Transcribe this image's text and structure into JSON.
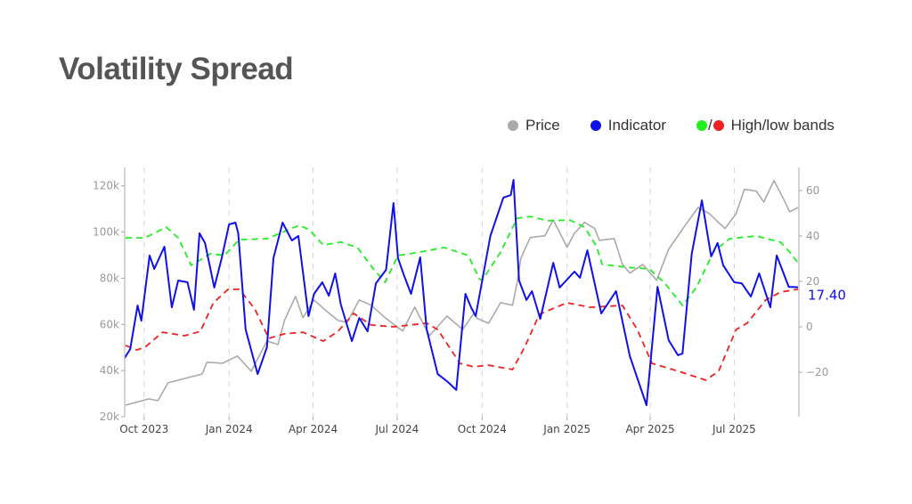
{
  "title": "Volatility Spread",
  "legend": {
    "price": {
      "label": "Price",
      "color": "#aaaaaa"
    },
    "indicator": {
      "label": "Indicator",
      "color": "#1010e8"
    },
    "bands": {
      "label": "High/low bands",
      "separator": "/",
      "high_color": "#22ee22",
      "low_color": "#ee2222"
    }
  },
  "chart_data": {
    "type": "line",
    "title": "Volatility Spread",
    "x_range": [
      "2023-09-10",
      "2025-09-09"
    ],
    "x_ticks": [
      {
        "date": "2023-10-01",
        "label": "Oct 2023"
      },
      {
        "date": "2024-01-01",
        "label": "Jan 2024"
      },
      {
        "date": "2024-04-01",
        "label": "Apr 2024"
      },
      {
        "date": "2024-07-01",
        "label": "Jul 2024"
      },
      {
        "date": "2024-10-01",
        "label": "Oct 2024"
      },
      {
        "date": "2025-01-01",
        "label": "Jan 2025"
      },
      {
        "date": "2025-04-01",
        "label": "Apr 2025"
      },
      {
        "date": "2025-07-01",
        "label": "Jul 2025"
      }
    ],
    "grid": "vertical dashed at x ticks",
    "y_left": {
      "range": [
        20000,
        128000
      ],
      "ticks": [
        {
          "value": 20000,
          "label": "20k"
        },
        {
          "value": 40000,
          "label": "40k"
        },
        {
          "value": 60000,
          "label": "60k"
        },
        {
          "value": 80000,
          "label": "80k"
        },
        {
          "value": 100000,
          "label": "100k"
        },
        {
          "value": 120000,
          "label": "120k"
        }
      ]
    },
    "y_right": {
      "range": [
        -39.6,
        70.2
      ],
      "ticks": [
        {
          "value": -20,
          "label": "−20"
        },
        {
          "value": 0,
          "label": "0"
        },
        {
          "value": 20,
          "label": "20"
        },
        {
          "value": 40,
          "label": "40"
        },
        {
          "value": 60,
          "label": "60"
        }
      ]
    },
    "last_value_label": "17.40",
    "series": [
      {
        "name": "Price",
        "axis": "left",
        "color": "#aaaaaa",
        "style": "solid",
        "points": [
          [
            "2023-09-11",
            25000
          ],
          [
            "2023-10-06",
            27700
          ],
          [
            "2023-10-16",
            27000
          ],
          [
            "2023-10-27",
            34700
          ],
          [
            "2023-11-14",
            36600
          ],
          [
            "2023-12-03",
            38500
          ],
          [
            "2023-12-08",
            43600
          ],
          [
            "2023-12-25",
            43200
          ],
          [
            "2024-01-10",
            46300
          ],
          [
            "2024-01-25",
            39700
          ],
          [
            "2024-02-11",
            52800
          ],
          [
            "2024-02-23",
            51300
          ],
          [
            "2024-03-01",
            61700
          ],
          [
            "2024-03-13",
            72100
          ],
          [
            "2024-03-21",
            62900
          ],
          [
            "2024-04-02",
            70600
          ],
          [
            "2024-04-16",
            65600
          ],
          [
            "2024-04-28",
            61700
          ],
          [
            "2024-05-08",
            60900
          ],
          [
            "2024-05-21",
            70600
          ],
          [
            "2024-06-03",
            68300
          ],
          [
            "2024-06-18",
            62900
          ],
          [
            "2024-07-07",
            57100
          ],
          [
            "2024-07-20",
            67500
          ],
          [
            "2024-08-05",
            55100
          ],
          [
            "2024-08-24",
            63600
          ],
          [
            "2024-09-10",
            57800
          ],
          [
            "2024-09-22",
            64800
          ],
          [
            "2024-09-26",
            62500
          ],
          [
            "2024-10-08",
            60500
          ],
          [
            "2024-10-21",
            69400
          ],
          [
            "2024-11-03",
            68300
          ],
          [
            "2024-11-08",
            78300
          ],
          [
            "2024-11-12",
            88700
          ],
          [
            "2024-11-22",
            97600
          ],
          [
            "2024-12-08",
            98400
          ],
          [
            "2024-12-17",
            105300
          ],
          [
            "2025-01-01",
            93400
          ],
          [
            "2025-01-09",
            99500
          ],
          [
            "2025-01-20",
            104200
          ],
          [
            "2025-01-31",
            101500
          ],
          [
            "2025-02-05",
            96400
          ],
          [
            "2025-02-21",
            97200
          ],
          [
            "2025-03-02",
            86000
          ],
          [
            "2025-03-10",
            82200
          ],
          [
            "2025-03-24",
            86000
          ],
          [
            "2025-04-08",
            79100
          ],
          [
            "2025-04-21",
            92600
          ],
          [
            "2025-05-09",
            103000
          ],
          [
            "2025-05-23",
            110700
          ],
          [
            "2025-06-04",
            108000
          ],
          [
            "2025-06-21",
            101500
          ],
          [
            "2025-07-03",
            108000
          ],
          [
            "2025-07-12",
            118500
          ],
          [
            "2025-07-25",
            117700
          ],
          [
            "2025-08-02",
            113000
          ],
          [
            "2025-08-13",
            122300
          ],
          [
            "2025-08-23",
            114600
          ],
          [
            "2025-08-30",
            108800
          ],
          [
            "2025-09-08",
            110700
          ]
        ]
      },
      {
        "name": "High band",
        "axis": "right",
        "color": "#22ee22",
        "style": "dashed",
        "points": [
          [
            "2023-09-11",
            39.2
          ],
          [
            "2023-10-02",
            39.2
          ],
          [
            "2023-10-25",
            43.9
          ],
          [
            "2023-11-07",
            39.2
          ],
          [
            "2023-11-21",
            27.1
          ],
          [
            "2023-12-12",
            32.2
          ],
          [
            "2023-12-27",
            31.4
          ],
          [
            "2024-01-12",
            38.4
          ],
          [
            "2024-02-11",
            38.8
          ],
          [
            "2024-03-01",
            42
          ],
          [
            "2024-03-17",
            44.7
          ],
          [
            "2024-03-28",
            42.7
          ],
          [
            "2024-04-12",
            36
          ],
          [
            "2024-05-01",
            37.3
          ],
          [
            "2024-05-19",
            34.9
          ],
          [
            "2024-06-06",
            25.1
          ],
          [
            "2024-06-18",
            19.6
          ],
          [
            "2024-07-02",
            31.4
          ],
          [
            "2024-07-20",
            32.5
          ],
          [
            "2024-08-21",
            34.9
          ],
          [
            "2024-09-16",
            31.4
          ],
          [
            "2024-09-28",
            21.2
          ],
          [
            "2024-10-01",
            20.4
          ],
          [
            "2024-10-21",
            32.9
          ],
          [
            "2024-11-08",
            47.8
          ],
          [
            "2024-11-22",
            48.6
          ],
          [
            "2024-12-11",
            46.7
          ],
          [
            "2025-01-04",
            47
          ],
          [
            "2025-01-20",
            43.9
          ],
          [
            "2025-02-02",
            35.3
          ],
          [
            "2025-02-08",
            27.5
          ],
          [
            "2025-03-05",
            26.3
          ],
          [
            "2025-03-31",
            25.5
          ],
          [
            "2025-04-16",
            19.6
          ],
          [
            "2025-05-06",
            9.4
          ],
          [
            "2025-05-21",
            17.3
          ],
          [
            "2025-06-09",
            33.3
          ],
          [
            "2025-06-26",
            38.8
          ],
          [
            "2025-07-25",
            40
          ],
          [
            "2025-08-20",
            37.3
          ],
          [
            "2025-08-30",
            32.9
          ],
          [
            "2025-09-08",
            28.2
          ]
        ]
      },
      {
        "name": "Low band",
        "axis": "right",
        "color": "#ee2222",
        "style": "dashed",
        "points": [
          [
            "2023-09-11",
            -8.2
          ],
          [
            "2023-09-23",
            -10.2
          ],
          [
            "2023-10-02",
            -9
          ],
          [
            "2023-10-21",
            -2.4
          ],
          [
            "2023-11-14",
            -3.9
          ],
          [
            "2023-12-01",
            -2
          ],
          [
            "2023-12-15",
            10.6
          ],
          [
            "2023-12-31",
            16.5
          ],
          [
            "2024-01-12",
            16.5
          ],
          [
            "2024-01-29",
            7.8
          ],
          [
            "2024-02-13",
            -5.1
          ],
          [
            "2024-03-01",
            -3.1
          ],
          [
            "2024-03-21",
            -2.4
          ],
          [
            "2024-04-12",
            -6.3
          ],
          [
            "2024-04-28",
            -2
          ],
          [
            "2024-05-15",
            5.9
          ],
          [
            "2024-06-03",
            0.8
          ],
          [
            "2024-06-27",
            0
          ],
          [
            "2024-08-02",
            1.6
          ],
          [
            "2024-08-14",
            -1.2
          ],
          [
            "2024-09-07",
            -16.1
          ],
          [
            "2024-09-22",
            -17.6
          ],
          [
            "2024-10-08",
            -16.9
          ],
          [
            "2024-11-03",
            -18.8
          ],
          [
            "2024-11-16",
            -9
          ],
          [
            "2024-12-02",
            5.5
          ],
          [
            "2025-01-01",
            10.6
          ],
          [
            "2025-01-26",
            8.6
          ],
          [
            "2025-03-02",
            9.4
          ],
          [
            "2025-03-18",
            -1.2
          ],
          [
            "2025-04-03",
            -16.1
          ],
          [
            "2025-05-02",
            -19.6
          ],
          [
            "2025-05-31",
            -23.5
          ],
          [
            "2025-06-14",
            -19.6
          ],
          [
            "2025-07-03",
            -1.2
          ],
          [
            "2025-07-15",
            1.6
          ],
          [
            "2025-08-04",
            11.8
          ],
          [
            "2025-08-20",
            15.3
          ],
          [
            "2025-09-08",
            16.5
          ]
        ]
      },
      {
        "name": "Indicator",
        "axis": "right",
        "color": "#1010e8",
        "style": "solid",
        "points": [
          [
            "2023-09-10",
            -13.7
          ],
          [
            "2023-09-16",
            -9.8
          ],
          [
            "2023-09-24",
            9.4
          ],
          [
            "2023-09-28",
            2.7
          ],
          [
            "2023-10-07",
            31.4
          ],
          [
            "2023-10-12",
            25.5
          ],
          [
            "2023-10-23",
            35.3
          ],
          [
            "2023-10-31",
            8.6
          ],
          [
            "2023-11-07",
            20.4
          ],
          [
            "2023-11-17",
            19.6
          ],
          [
            "2023-11-24",
            7.5
          ],
          [
            "2023-11-30",
            41.2
          ],
          [
            "2023-12-06",
            36.9
          ],
          [
            "2023-12-16",
            17.3
          ],
          [
            "2023-12-24",
            30.2
          ],
          [
            "2024-01-01",
            45.1
          ],
          [
            "2024-01-08",
            45.9
          ],
          [
            "2024-01-11",
            41.2
          ],
          [
            "2024-01-19",
            -1.2
          ],
          [
            "2024-02-01",
            -20.8
          ],
          [
            "2024-02-11",
            -9
          ],
          [
            "2024-02-18",
            30.2
          ],
          [
            "2024-02-28",
            45.9
          ],
          [
            "2024-03-09",
            38
          ],
          [
            "2024-03-16",
            40
          ],
          [
            "2024-03-27",
            4.7
          ],
          [
            "2024-04-02",
            14.5
          ],
          [
            "2024-04-11",
            19.6
          ],
          [
            "2024-04-18",
            13.7
          ],
          [
            "2024-04-25",
            23.5
          ],
          [
            "2024-05-01",
            9.8
          ],
          [
            "2024-05-13",
            -6.3
          ],
          [
            "2024-05-21",
            3.9
          ],
          [
            "2024-05-30",
            -2
          ],
          [
            "2024-06-08",
            19.2
          ],
          [
            "2024-06-19",
            25.1
          ],
          [
            "2024-06-27",
            54.5
          ],
          [
            "2024-07-02",
            30.2
          ],
          [
            "2024-07-08",
            23.1
          ],
          [
            "2024-07-16",
            14.5
          ],
          [
            "2024-07-26",
            30.6
          ],
          [
            "2024-08-02",
            -1.2
          ],
          [
            "2024-08-14",
            -20.8
          ],
          [
            "2024-08-25",
            -24.3
          ],
          [
            "2024-09-03",
            -27.8
          ],
          [
            "2024-09-13",
            14.5
          ],
          [
            "2024-09-19",
            8.6
          ],
          [
            "2024-09-24",
            4.7
          ],
          [
            "2024-10-10",
            40
          ],
          [
            "2024-10-24",
            56.9
          ],
          [
            "2024-11-01",
            58
          ],
          [
            "2024-11-04",
            64.7
          ],
          [
            "2024-11-10",
            20.4
          ],
          [
            "2024-11-18",
            11.8
          ],
          [
            "2024-11-24",
            15.7
          ],
          [
            "2024-12-03",
            3.5
          ],
          [
            "2024-12-17",
            28.2
          ],
          [
            "2024-12-24",
            17.3
          ],
          [
            "2025-01-09",
            24.3
          ],
          [
            "2025-01-15",
            21.6
          ],
          [
            "2025-01-23",
            33.7
          ],
          [
            "2025-02-07",
            5.9
          ],
          [
            "2025-02-23",
            15.7
          ],
          [
            "2025-03-10",
            -12.9
          ],
          [
            "2025-03-28",
            -34.5
          ],
          [
            "2025-04-09",
            17.6
          ],
          [
            "2025-04-21",
            -5.9
          ],
          [
            "2025-05-01",
            -12.5
          ],
          [
            "2025-05-06",
            -11.8
          ],
          [
            "2025-05-16",
            32.2
          ],
          [
            "2025-05-27",
            55.7
          ],
          [
            "2025-06-06",
            31
          ],
          [
            "2025-06-13",
            36.9
          ],
          [
            "2025-06-19",
            27.1
          ],
          [
            "2025-07-01",
            19.6
          ],
          [
            "2025-07-09",
            19.2
          ],
          [
            "2025-07-19",
            13.3
          ],
          [
            "2025-07-28",
            23.5
          ],
          [
            "2025-08-09",
            8.6
          ],
          [
            "2025-08-16",
            31.4
          ],
          [
            "2025-08-29",
            17.6
          ],
          [
            "2025-09-08",
            17.4
          ]
        ]
      }
    ]
  }
}
